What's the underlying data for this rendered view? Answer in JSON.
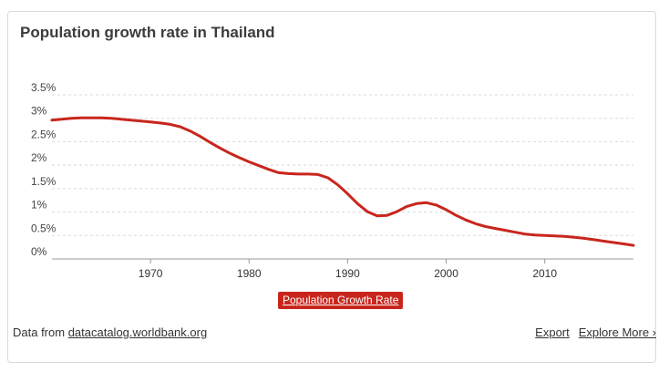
{
  "title": "Population growth rate in Thailand",
  "legend_label": "Population Growth Rate",
  "footer": {
    "prefix": "Data from ",
    "source": "datacatalog.worldbank.org",
    "export": "Export",
    "explore": "Explore More ›"
  },
  "colors": {
    "series": "#c8261d",
    "grid": "#d9d9d9",
    "axis": "#999999"
  },
  "chart_data": {
    "type": "line",
    "title": "Population growth rate in Thailand",
    "xlabel": "",
    "ylabel": "",
    "ylim": [
      0,
      3.5
    ],
    "xlim": [
      1960,
      2019
    ],
    "y_ticks": [
      "0%",
      "0.5%",
      "1%",
      "1.5%",
      "2%",
      "2.5%",
      "3%",
      "3.5%"
    ],
    "x_ticks": [
      "1970",
      "1980",
      "1990",
      "2000",
      "2010"
    ],
    "grid": true,
    "legend_position": "bottom-center",
    "series": [
      {
        "name": "Population Growth Rate",
        "x": [
          1960,
          1961,
          1962,
          1963,
          1964,
          1965,
          1966,
          1967,
          1968,
          1969,
          1970,
          1971,
          1972,
          1973,
          1974,
          1975,
          1976,
          1977,
          1978,
          1979,
          1980,
          1981,
          1982,
          1983,
          1984,
          1985,
          1986,
          1987,
          1988,
          1989,
          1990,
          1991,
          1992,
          1993,
          1994,
          1995,
          1996,
          1997,
          1998,
          1999,
          2000,
          2001,
          2002,
          2003,
          2004,
          2005,
          2006,
          2007,
          2008,
          2009,
          2010,
          2011,
          2012,
          2013,
          2014,
          2015,
          2016,
          2017,
          2018,
          2019
        ],
        "values": [
          2.96,
          2.98,
          3.0,
          3.01,
          3.01,
          3.01,
          3.0,
          2.98,
          2.96,
          2.94,
          2.92,
          2.9,
          2.87,
          2.82,
          2.73,
          2.62,
          2.49,
          2.37,
          2.26,
          2.16,
          2.07,
          1.99,
          1.91,
          1.84,
          1.82,
          1.81,
          1.81,
          1.8,
          1.73,
          1.58,
          1.39,
          1.18,
          1.01,
          0.92,
          0.93,
          1.01,
          1.12,
          1.18,
          1.2,
          1.15,
          1.05,
          0.93,
          0.83,
          0.75,
          0.69,
          0.65,
          0.61,
          0.57,
          0.53,
          0.51,
          0.5,
          0.49,
          0.48,
          0.46,
          0.44,
          0.41,
          0.38,
          0.35,
          0.32,
          0.29
        ]
      }
    ]
  }
}
